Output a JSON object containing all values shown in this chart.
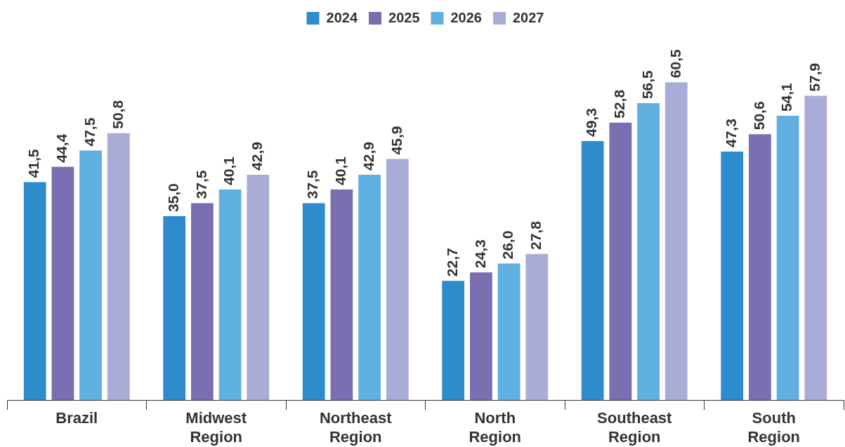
{
  "chart_data": {
    "type": "bar",
    "categories": [
      "Brazil",
      "Midwest Region",
      "Northeast Region",
      "North Region",
      "Southeast Region",
      "South Region"
    ],
    "series": [
      {
        "name": "2024",
        "color": "#2e8bcc",
        "values": [
          41.5,
          35.0,
          37.5,
          22.7,
          49.3,
          47.3
        ],
        "value_labels": [
          "41,5",
          "35,0",
          "37,5",
          "22,7",
          "49,3",
          "47,3"
        ]
      },
      {
        "name": "2025",
        "color": "#7a6db0",
        "values": [
          44.4,
          37.5,
          40.1,
          24.3,
          52.8,
          50.6
        ],
        "value_labels": [
          "44,4",
          "37,5",
          "40,1",
          "24,3",
          "52,8",
          "50,6"
        ]
      },
      {
        "name": "2026",
        "color": "#5fafe0",
        "values": [
          47.5,
          40.1,
          42.9,
          26.0,
          56.5,
          54.1
        ],
        "value_labels": [
          "47,5",
          "40,1",
          "42,9",
          "26,0",
          "56,5",
          "54,1"
        ]
      },
      {
        "name": "2027",
        "color": "#a9acd6",
        "values": [
          50.8,
          42.9,
          45.9,
          27.8,
          60.5,
          57.9
        ],
        "value_labels": [
          "50,8",
          "42,9",
          "45,9",
          "27,8",
          "60,5",
          "57,9"
        ]
      }
    ],
    "legend": "top",
    "grid": false
  }
}
